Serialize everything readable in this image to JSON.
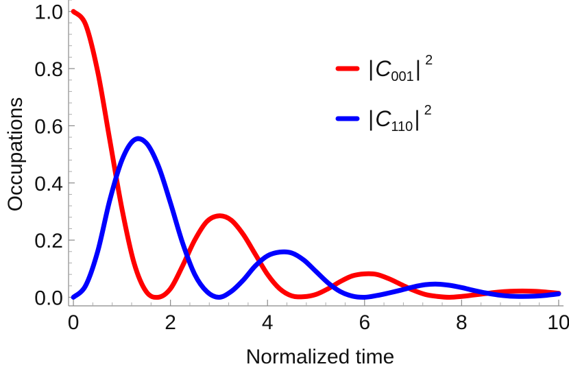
{
  "chart_data": {
    "type": "line",
    "title": "",
    "xlabel": "Normalized time",
    "ylabel": "Occupations",
    "xlim": [
      -0.1,
      10.1
    ],
    "ylim": [
      -0.03,
      1.04
    ],
    "x_ticks": [
      0,
      2,
      4,
      6,
      8,
      10
    ],
    "x_tick_labels": [
      "0",
      "2",
      "4",
      "6",
      "8",
      "10"
    ],
    "y_ticks": [
      0.0,
      0.2,
      0.4,
      0.6,
      0.8,
      1.0
    ],
    "y_tick_labels": [
      "0.0",
      "0.2",
      "0.4",
      "0.6",
      "0.8",
      "1.0"
    ],
    "grid": false,
    "legend_position": "top-right",
    "series": [
      {
        "name": "|C001|²",
        "legend": {
          "open": "|",
          "base": "C",
          "sub": "001",
          "close": "|",
          "sup": "2"
        },
        "color": "#ff0000",
        "x": [
          0,
          0.25,
          0.5,
          0.75,
          1.0,
          1.25,
          1.5,
          1.75,
          2.0,
          2.25,
          2.5,
          2.75,
          3.0,
          3.25,
          3.5,
          3.75,
          4.0,
          4.25,
          4.5,
          4.75,
          5.0,
          5.25,
          5.5,
          5.75,
          6.0,
          6.25,
          6.5,
          6.75,
          7.0,
          7.25,
          7.5,
          7.75,
          8.0,
          8.25,
          8.5,
          8.75,
          9.0,
          9.25,
          9.5,
          9.75,
          10.0
        ],
        "values": [
          1.0,
          0.955,
          0.79,
          0.55,
          0.31,
          0.12,
          0.02,
          0.0,
          0.03,
          0.11,
          0.2,
          0.265,
          0.285,
          0.27,
          0.22,
          0.15,
          0.08,
          0.03,
          0.005,
          0.002,
          0.01,
          0.03,
          0.055,
          0.075,
          0.082,
          0.08,
          0.065,
          0.045,
          0.025,
          0.01,
          0.003,
          0.0,
          0.003,
          0.008,
          0.013,
          0.018,
          0.021,
          0.022,
          0.021,
          0.018,
          0.014
        ]
      },
      {
        "name": "|C110|²",
        "legend": {
          "open": "|",
          "base": "C",
          "sub": "110",
          "close": "|",
          "sup": "2"
        },
        "color": "#0000ff",
        "x": [
          0,
          0.25,
          0.5,
          0.75,
          1.0,
          1.25,
          1.5,
          1.75,
          2.0,
          2.25,
          2.5,
          2.75,
          3.0,
          3.25,
          3.5,
          3.75,
          4.0,
          4.25,
          4.5,
          4.75,
          5.0,
          5.25,
          5.5,
          5.75,
          6.0,
          6.25,
          6.5,
          6.75,
          7.0,
          7.25,
          7.5,
          7.75,
          8.0,
          8.25,
          8.5,
          8.75,
          9.0,
          9.25,
          9.5,
          9.75,
          10.0
        ],
        "values": [
          0.0,
          0.04,
          0.16,
          0.34,
          0.48,
          0.55,
          0.54,
          0.46,
          0.33,
          0.19,
          0.08,
          0.02,
          0.0,
          0.02,
          0.06,
          0.11,
          0.145,
          0.158,
          0.155,
          0.13,
          0.09,
          0.05,
          0.02,
          0.004,
          0.0,
          0.006,
          0.015,
          0.025,
          0.036,
          0.044,
          0.046,
          0.042,
          0.034,
          0.024,
          0.015,
          0.008,
          0.004,
          0.003,
          0.004,
          0.007,
          0.012
        ]
      }
    ]
  }
}
